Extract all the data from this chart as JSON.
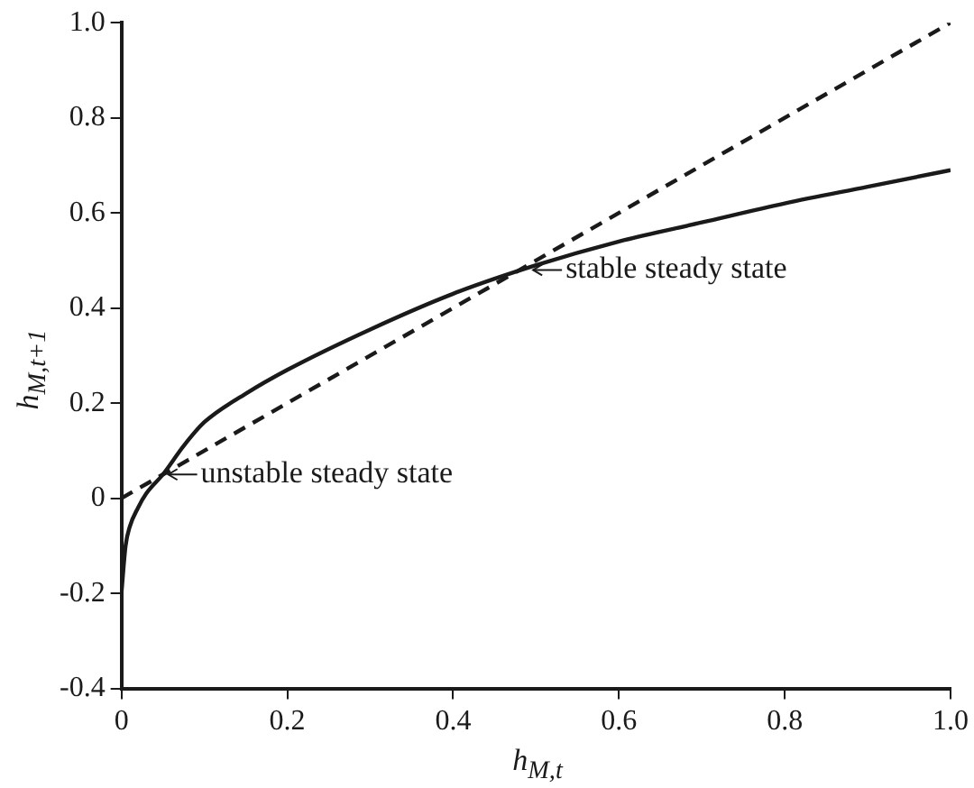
{
  "chart_data": {
    "type": "line",
    "xlabel": "h$_{M,t}$",
    "ylabel": "h$_{M,t+1}$",
    "xlim": [
      0,
      1.0
    ],
    "xticks": [
      0,
      0.2,
      0.4,
      0.6,
      0.8,
      {
        "value": 1.0,
        "label": "1.0"
      }
    ],
    "ylim": [
      -0.4,
      1.0
    ],
    "yticks": [
      -0.4,
      -0.2,
      0,
      0.2,
      0.4,
      0.6,
      0.8,
      {
        "value": 1.0,
        "label": "1.0"
      }
    ],
    "grid": false,
    "legend": false,
    "marker": "none",
    "series": [
      {
        "color": "#1a1a1a",
        "line_style": "solid",
        "x": [
          0,
          0.005,
          0.01,
          0.02,
          0.03,
          0.05,
          0.075,
          0.1,
          0.15,
          0.2,
          0.3,
          0.4,
          0.5,
          0.6,
          0.7,
          0.8,
          0.9,
          1.0
        ],
        "values": [
          -0.2,
          -0.1,
          -0.06,
          -0.02,
          0.01,
          0.05,
          0.11,
          0.16,
          0.22,
          0.27,
          0.355,
          0.43,
          0.49,
          0.54,
          0.58,
          0.62,
          0.655,
          0.69
        ]
      },
      {
        "color": "#1a1a1a",
        "line_style": "dashed",
        "x": [
          0,
          1.0
        ],
        "values": [
          0,
          1.0
        ]
      }
    ],
    "annotations": [
      {
        "text": "unstable steady state",
        "x": 0.05,
        "y": 0.05
      },
      {
        "text": "stable steady state",
        "x": 0.49,
        "y": 0.48
      }
    ]
  }
}
